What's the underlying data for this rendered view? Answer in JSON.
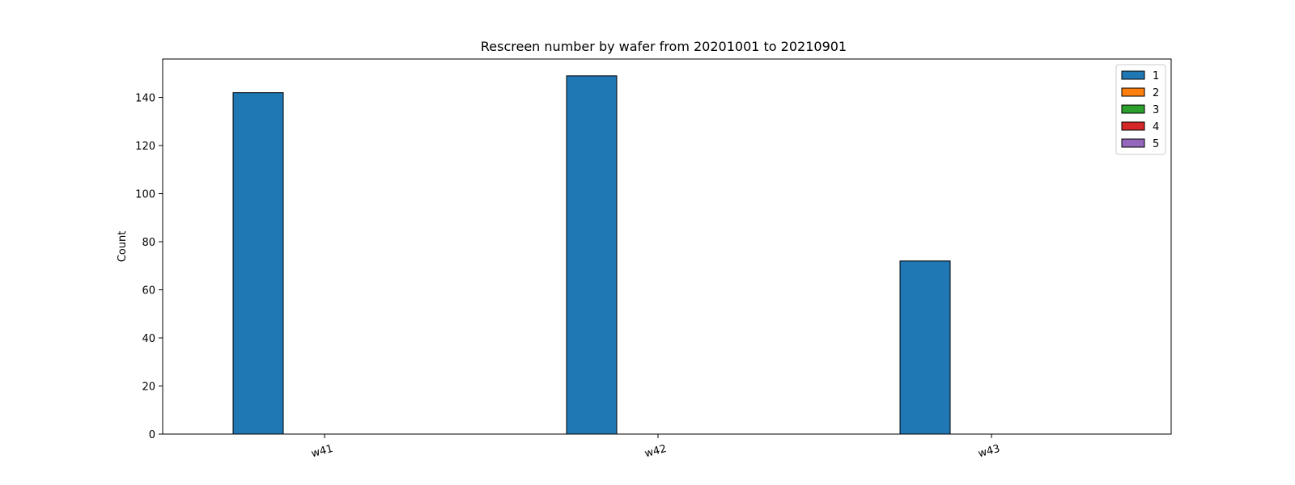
{
  "chart_data": {
    "type": "bar",
    "title": "Rescreen number  by wafer from 20201001 to 20210901",
    "xlabel": "",
    "ylabel": "Count",
    "categories": [
      "w41",
      "w42",
      "w43"
    ],
    "ylim": [
      0,
      156
    ],
    "yticks": [
      0,
      20,
      40,
      60,
      80,
      100,
      120,
      140
    ],
    "grid": false,
    "legend_position": "top-right",
    "series": [
      {
        "name": "1",
        "values": [
          142,
          149,
          72
        ],
        "color": "#1f77b4"
      },
      {
        "name": "2",
        "values": [
          0,
          0,
          0
        ],
        "color": "#ff7f0e"
      },
      {
        "name": "3",
        "values": [
          0,
          0,
          0
        ],
        "color": "#2ca02c"
      },
      {
        "name": "4",
        "values": [
          0,
          0,
          0
        ],
        "color": "#d62728"
      },
      {
        "name": "5",
        "values": [
          0,
          0,
          0
        ],
        "color": "#9467bd"
      }
    ]
  }
}
